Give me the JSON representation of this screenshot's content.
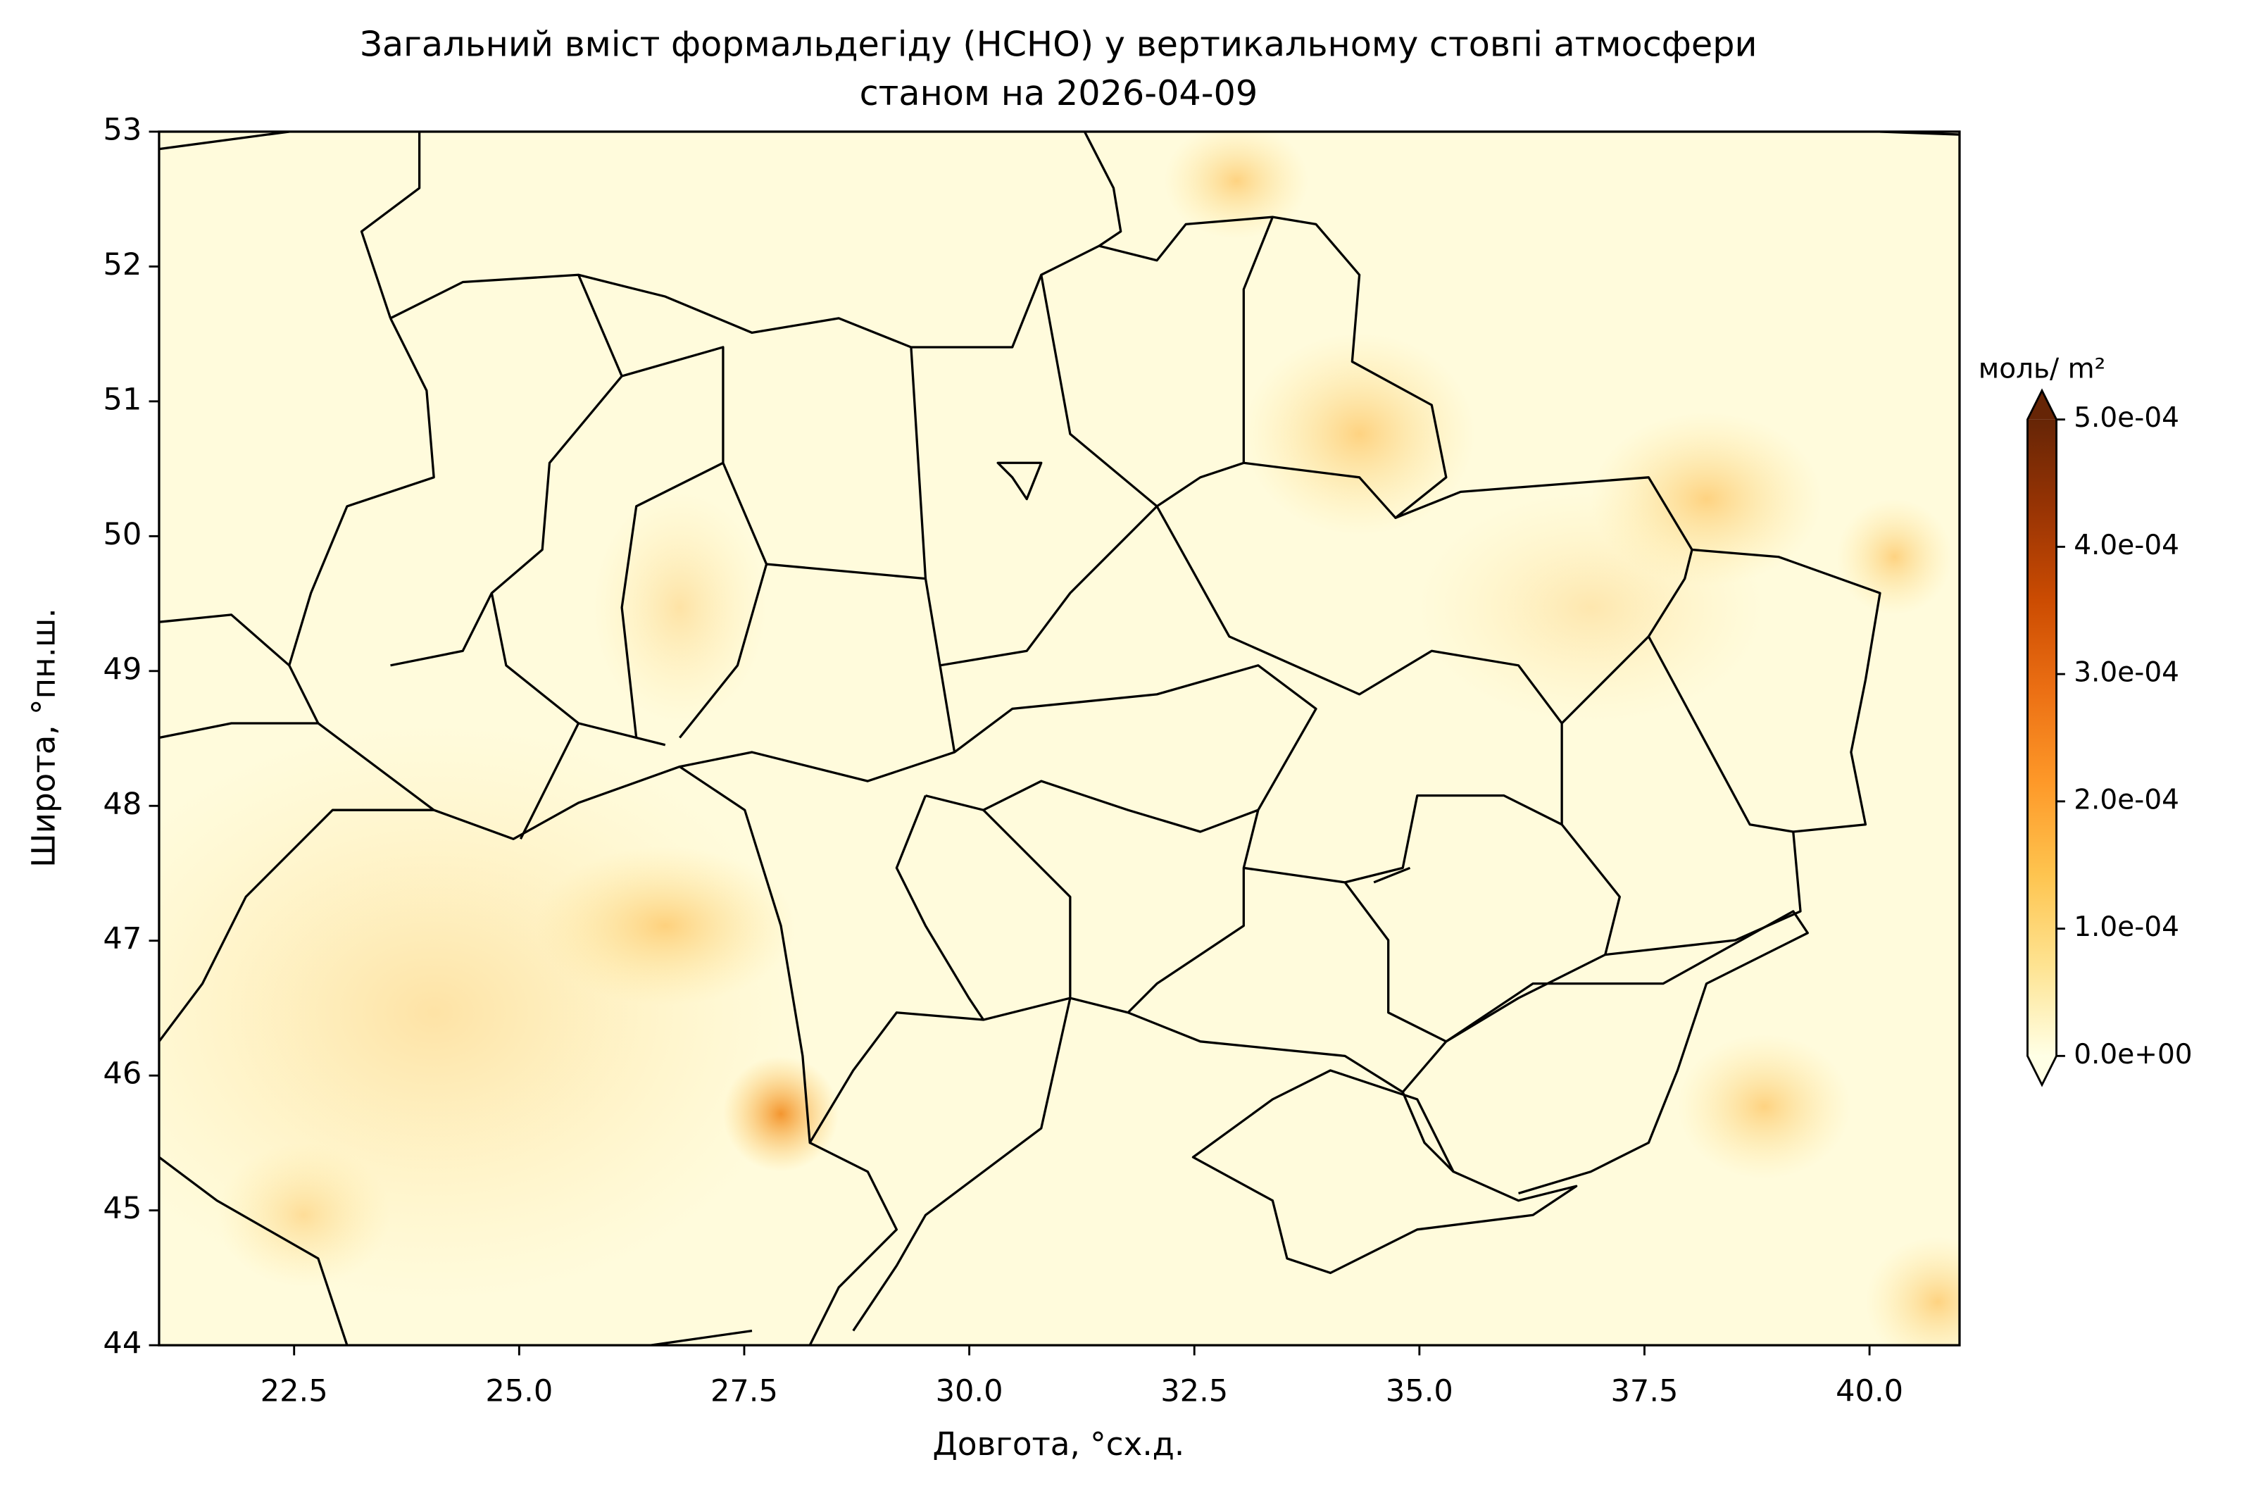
{
  "chart_data": {
    "type": "map",
    "title": [
      "Загальний вміст формальдегіду (HCHO) у вертикальному стовпі атмосфери",
      "станом на 2026-04-09"
    ],
    "xlabel": "Довгота, °сх.д.",
    "ylabel": "Широта, °пн.ш.",
    "xlim": [
      21,
      41
    ],
    "ylim": [
      44,
      53
    ],
    "xticks": [
      22.5,
      {
        "value": 25,
        "label": "25.0"
      },
      27.5,
      {
        "value": 30,
        "label": "30.0"
      },
      32.5,
      {
        "value": 35,
        "label": "35.0"
      },
      37.5,
      {
        "value": 40,
        "label": "40.0"
      }
    ],
    "yticks": [
      44,
      45,
      46,
      47,
      48,
      49,
      50,
      51,
      52,
      53
    ],
    "colorbar": {
      "label": "моль/ m²",
      "lim": [
        0,
        0.0005
      ],
      "colors": [
        "#ffffe5",
        "#fee391",
        "#fec44f",
        "#fe9929",
        "#ec7014",
        "#cc4c02",
        "#993404",
        "#662506"
      ],
      "ticks": [
        {
          "value": 0,
          "label": "0.0e+00"
        },
        {
          "value": 0.0001,
          "label": "1.0e-04"
        },
        {
          "value": 0.0002,
          "label": "2.0e-04"
        },
        {
          "value": 0.0003,
          "label": "3.0e-04"
        },
        {
          "value": 0.0004,
          "label": "4.0e-04"
        },
        {
          "value": 0.0005,
          "label": "5.0e-04"
        }
      ]
    }
  }
}
